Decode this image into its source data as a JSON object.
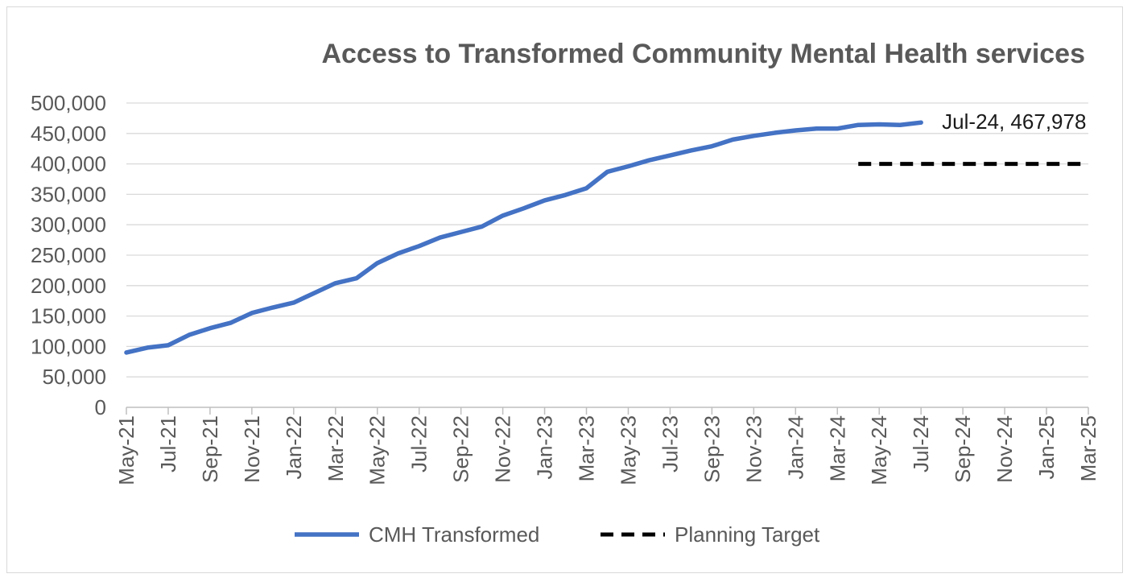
{
  "chart_data": {
    "type": "line",
    "title": "Access to Transformed Community Mental Health services",
    "xlabel": "",
    "ylabel": "",
    "ylim": [
      0,
      500000
    ],
    "y_ticks": [
      "0",
      "50,000",
      "100,000",
      "150,000",
      "200,000",
      "250,000",
      "300,000",
      "350,000",
      "400,000",
      "450,000",
      "500,000"
    ],
    "x_categories": [
      "May-21",
      "Jun-21",
      "Jul-21",
      "Aug-21",
      "Sep-21",
      "Oct-21",
      "Nov-21",
      "Dec-21",
      "Jan-22",
      "Feb-22",
      "Mar-22",
      "Apr-22",
      "May-22",
      "Jun-22",
      "Jul-22",
      "Aug-22",
      "Sep-22",
      "Oct-22",
      "Nov-22",
      "Dec-22",
      "Jan-23",
      "Feb-23",
      "Mar-23",
      "Apr-23",
      "May-23",
      "Jun-23",
      "Jul-23",
      "Aug-23",
      "Sep-23",
      "Oct-23",
      "Nov-23",
      "Dec-23",
      "Jan-24",
      "Feb-24",
      "Mar-24",
      "Apr-24",
      "May-24",
      "Jun-24",
      "Jul-24",
      "Aug-24",
      "Sep-24",
      "Oct-24",
      "Nov-24",
      "Dec-24",
      "Jan-25",
      "Feb-25",
      "Mar-25"
    ],
    "x_tick_labels": [
      "May-21",
      "Jul-21",
      "Sep-21",
      "Nov-21",
      "Jan-22",
      "Mar-22",
      "May-22",
      "Jul-22",
      "Sep-22",
      "Nov-22",
      "Jan-23",
      "Mar-23",
      "May-23",
      "Jul-23",
      "Sep-23",
      "Nov-23",
      "Jan-24",
      "Mar-24",
      "May-24",
      "Jul-24",
      "Sep-24",
      "Nov-24",
      "Jan-25",
      "Mar-25"
    ],
    "grid": true,
    "legend_position": "bottom",
    "series": [
      {
        "name": "CMH Transformed",
        "color": "#4472c4",
        "style": "solid",
        "values": [
          90000,
          98000,
          102000,
          119000,
          130000,
          139000,
          155000,
          164000,
          172000,
          188000,
          204000,
          212000,
          237000,
          253000,
          265000,
          279000,
          288000,
          297000,
          315000,
          327000,
          340000,
          349000,
          360000,
          387000,
          396000,
          406000,
          414000,
          422000,
          429000,
          440000,
          446000,
          451000,
          455000,
          458000,
          458000,
          464000,
          465000,
          464000,
          467978,
          null,
          null,
          null,
          null,
          null,
          null,
          null,
          null
        ]
      },
      {
        "name": "Planning Target",
        "color": "#000000",
        "style": "dashed",
        "values": [
          null,
          null,
          null,
          null,
          null,
          null,
          null,
          null,
          null,
          null,
          null,
          null,
          null,
          null,
          null,
          null,
          null,
          null,
          null,
          null,
          null,
          null,
          null,
          null,
          null,
          null,
          null,
          null,
          null,
          null,
          null,
          null,
          null,
          null,
          null,
          400000,
          400000,
          400000,
          400000,
          400000,
          400000,
          400000,
          400000,
          400000,
          400000,
          400000,
          400000
        ]
      }
    ],
    "annotations": [
      {
        "text": "Jul-24, 467,978",
        "series": "CMH Transformed",
        "x": "Jul-24",
        "y": 467978
      }
    ]
  }
}
